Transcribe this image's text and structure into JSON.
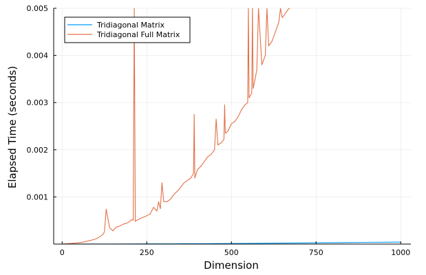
{
  "chart_data": {
    "type": "line",
    "xlabel": "Dimension",
    "ylabel": "Elapsed Time (seconds)",
    "xlim": [
      -25,
      1030
    ],
    "ylim": [
      0.0,
      0.005
    ],
    "x_ticks": [
      0,
      250,
      500,
      750,
      1000
    ],
    "x_tick_labels": [
      "0",
      "250",
      "500",
      "750",
      "1000"
    ],
    "y_ticks": [
      0.001,
      0.002,
      0.003,
      0.004,
      0.005
    ],
    "y_tick_labels": [
      "0.001",
      "0.002",
      "0.003",
      "0.004",
      "0.005"
    ],
    "grid": true,
    "legend_position": "top-left",
    "series": [
      {
        "name": "Tridiagonal Matrix",
        "color": "#009AFA",
        "x": [
          0,
          50,
          100,
          150,
          200,
          250,
          300,
          350,
          400,
          450,
          500,
          550,
          600,
          650,
          700,
          750,
          800,
          850,
          900,
          950,
          1000
        ],
        "values": [
          5e-07,
          8e-07,
          1.2e-06,
          2e-06,
          3e-06,
          4e-06,
          5e-06,
          6e-06,
          8e-06,
          1e-05,
          1.2e-05,
          1.5e-05,
          1.8e-05,
          2.1e-05,
          2.4e-05,
          2.7e-05,
          3e-05,
          3.3e-05,
          3.6e-05,
          3.9e-05,
          4.2e-05
        ]
      },
      {
        "name": "Tridiagonal Full Matrix",
        "color": "#E36F47",
        "x": [
          0,
          20,
          40,
          60,
          80,
          100,
          110,
          120,
          125,
          130,
          140,
          150,
          160,
          170,
          180,
          190,
          200,
          205,
          210,
          213,
          216,
          220,
          230,
          240,
          250,
          260,
          270,
          280,
          285,
          290,
          295,
          300,
          310,
          320,
          330,
          340,
          350,
          360,
          370,
          380,
          388,
          390,
          392,
          400,
          410,
          420,
          430,
          440,
          450,
          455,
          460,
          470,
          478,
          480,
          482,
          490,
          500,
          510,
          520,
          530,
          540,
          548,
          550,
          552,
          560,
          562,
          564,
          570,
          575,
          580,
          590,
          600,
          605,
          610,
          620,
          630,
          640,
          645,
          650,
          660,
          670,
          675
        ],
        "values": [
          0.0,
          1e-05,
          2e-05,
          4e-05,
          7e-05,
          0.00011,
          0.00015,
          0.0002,
          0.00026,
          0.00074,
          0.00035,
          0.00028,
          0.00036,
          0.00038,
          0.00042,
          0.00044,
          0.00048,
          0.00052,
          0.0005,
          0.005,
          0.00048,
          0.0005,
          0.00054,
          0.00057,
          0.0006,
          0.00064,
          0.00078,
          0.0007,
          0.0009,
          0.00075,
          0.0013,
          0.0009,
          0.0009,
          0.00095,
          0.00105,
          0.00112,
          0.0012,
          0.0013,
          0.00135,
          0.0014,
          0.0015,
          0.00275,
          0.0014,
          0.00158,
          0.00165,
          0.00175,
          0.00185,
          0.0019,
          0.002,
          0.00265,
          0.0021,
          0.00215,
          0.00222,
          0.00295,
          0.00235,
          0.0024,
          0.00255,
          0.0026,
          0.0027,
          0.00285,
          0.00295,
          0.003,
          0.005,
          0.0031,
          0.0032,
          0.005,
          0.0033,
          0.0035,
          0.0037,
          0.005,
          0.0038,
          0.004,
          0.005,
          0.0042,
          0.0043,
          0.0045,
          0.0047,
          0.005,
          0.0048,
          0.0049,
          0.005,
          0.005
        ]
      }
    ]
  }
}
